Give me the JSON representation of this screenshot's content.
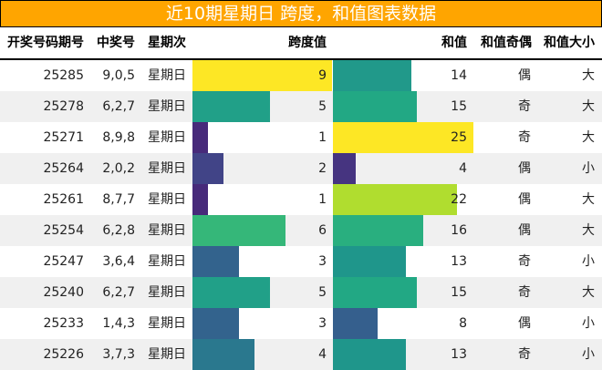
{
  "title": "近10期星期日 跨度，和值图表数据",
  "headers": [
    "开奖号码期号",
    "中奖号",
    "星期次",
    "跨度值",
    "和值",
    "和值奇偶",
    "和值大小"
  ],
  "chart_data": {
    "type": "table",
    "title": "近10期星期日 跨度，和值图表数据",
    "span_max": 9,
    "sum_max": 25,
    "rows": [
      {
        "issue": "25285",
        "numbers": "9,0,5",
        "weekday": "星期日",
        "span": 9,
        "sum": 14,
        "parity": "偶",
        "size": "大",
        "span_color": "#fde725",
        "sum_color": "#21998a"
      },
      {
        "issue": "25278",
        "numbers": "6,2,7",
        "weekday": "星期日",
        "span": 5,
        "sum": 15,
        "parity": "奇",
        "size": "大",
        "span_color": "#21a088",
        "sum_color": "#22a884"
      },
      {
        "issue": "25271",
        "numbers": "8,9,8",
        "weekday": "星期日",
        "span": 1,
        "sum": 25,
        "parity": "奇",
        "size": "大",
        "span_color": "#472a7a",
        "sum_color": "#fde725"
      },
      {
        "issue": "25264",
        "numbers": "2,0,2",
        "weekday": "星期日",
        "span": 2,
        "sum": 4,
        "parity": "偶",
        "size": "小",
        "span_color": "#414487",
        "sum_color": "#463480"
      },
      {
        "issue": "25261",
        "numbers": "8,7,7",
        "weekday": "星期日",
        "span": 1,
        "sum": 22,
        "parity": "偶",
        "size": "大",
        "span_color": "#472a7a",
        "sum_color": "#b0dd2f"
      },
      {
        "issue": "25254",
        "numbers": "6,2,8",
        "weekday": "星期日",
        "span": 6,
        "sum": 16,
        "parity": "偶",
        "size": "大",
        "span_color": "#35b779",
        "sum_color": "#29af7f"
      },
      {
        "issue": "25247",
        "numbers": "3,6,4",
        "weekday": "星期日",
        "span": 3,
        "sum": 13,
        "parity": "奇",
        "size": "小",
        "span_color": "#33638d",
        "sum_color": "#1f968b"
      },
      {
        "issue": "25240",
        "numbers": "6,2,7",
        "weekday": "星期日",
        "span": 5,
        "sum": 15,
        "parity": "奇",
        "size": "大",
        "span_color": "#21a088",
        "sum_color": "#22a884"
      },
      {
        "issue": "25233",
        "numbers": "1,4,3",
        "weekday": "星期日",
        "span": 3,
        "sum": 8,
        "parity": "偶",
        "size": "小",
        "span_color": "#33638d",
        "sum_color": "#355f8d"
      },
      {
        "issue": "25226",
        "numbers": "3,7,3",
        "weekday": "星期日",
        "span": 4,
        "sum": 13,
        "parity": "奇",
        "size": "小",
        "span_color": "#2a788e",
        "sum_color": "#1f968b"
      }
    ]
  }
}
